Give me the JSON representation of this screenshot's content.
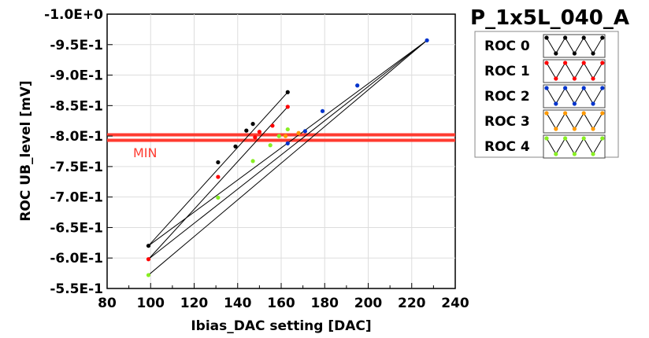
{
  "chart_data": {
    "type": "scatter",
    "title": "P_1x5L_040_A",
    "xlabel": "Ibias_DAC setting [DAC]",
    "ylabel": "ROC UB_level [mV]",
    "xlim": [
      80,
      240
    ],
    "ylim": [
      -1.0,
      -0.55
    ],
    "x_ticks": [
      80,
      100,
      120,
      140,
      160,
      180,
      200,
      220,
      240
    ],
    "x_tick_labels": [
      "80",
      "100",
      "120",
      "140",
      "160",
      "180",
      "200",
      "220",
      "240"
    ],
    "y_ticks": [
      -0.55,
      -0.6,
      -0.65,
      -0.7,
      -0.75,
      -0.8,
      -0.85,
      -0.9,
      -0.95,
      -1.0
    ],
    "y_tick_labels": [
      "-5.5E-1",
      "-6.0E-1",
      "-6.5E-1",
      "-7.0E-1",
      "-7.5E-1",
      "-8.0E-1",
      "-8.5E-1",
      "-9.0E-1",
      "-9.5E-1",
      "-1.0E+0"
    ],
    "grid": true,
    "legend_position": "right",
    "series": [
      {
        "name": "ROC 0",
        "color": "#000000",
        "points": [
          [
            99,
            -0.62
          ],
          [
            131,
            -0.757
          ],
          [
            139,
            -0.783
          ],
          [
            144,
            -0.809
          ],
          [
            147,
            -0.82
          ],
          [
            163,
            -0.872
          ]
        ]
      },
      {
        "name": "ROC 1",
        "color": "#ff0000",
        "points": [
          [
            99,
            -0.598
          ],
          [
            131,
            -0.733
          ],
          [
            148,
            -0.798
          ],
          [
            150,
            -0.807
          ],
          [
            156,
            -0.817
          ],
          [
            163,
            -0.848
          ]
        ]
      },
      {
        "name": "ROC 2",
        "color": "#0033cc",
        "points": [
          [
            163,
            -0.788
          ],
          [
            171,
            -0.808
          ],
          [
            179,
            -0.841
          ],
          [
            195,
            -0.883
          ],
          [
            227,
            -0.957
          ]
        ]
      },
      {
        "name": "ROC 3",
        "color": "#ff9900",
        "points": [
          [
            162,
            -0.8
          ],
          [
            168,
            -0.805
          ]
        ]
      },
      {
        "name": "ROC 4",
        "color": "#88ee22",
        "points": [
          [
            99,
            -0.572
          ],
          [
            131,
            -0.699
          ],
          [
            147,
            -0.759
          ],
          [
            155,
            -0.785
          ],
          [
            159,
            -0.8
          ],
          [
            163,
            -0.811
          ]
        ]
      }
    ],
    "fit_lines": [
      [
        [
          99,
          -0.572
        ],
        [
          227,
          -0.957
        ]
      ],
      [
        [
          99,
          -0.598
        ],
        [
          227,
          -0.957
        ]
      ],
      [
        [
          99,
          -0.62
        ],
        [
          163,
          -0.872
        ]
      ],
      [
        [
          99,
          -0.598
        ],
        [
          163,
          -0.848
        ]
      ],
      [
        [
          99,
          -0.62
        ],
        [
          227,
          -0.957
        ]
      ]
    ],
    "reference_lines": [
      {
        "label": "MIN",
        "y": -0.793,
        "color": "#ff3b30"
      },
      {
        "label": "",
        "y": -0.802,
        "color": "#ff3b30"
      }
    ]
  }
}
